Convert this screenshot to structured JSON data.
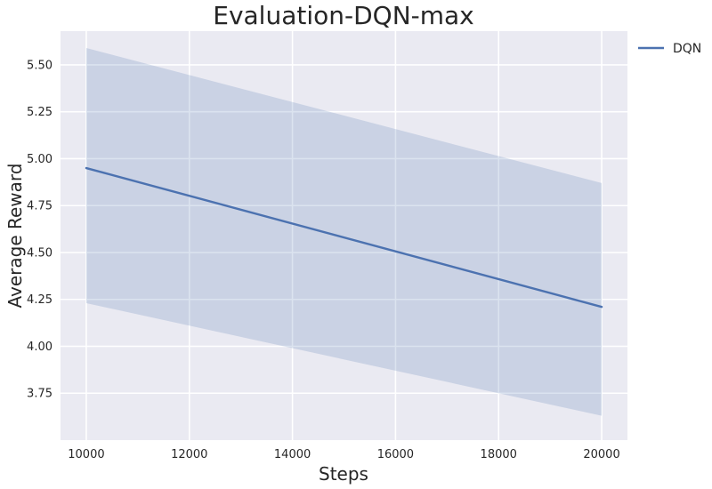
{
  "chart_data": {
    "type": "line",
    "title": "Evaluation-DQN-max",
    "xlabel": "Steps",
    "ylabel": "Average Reward",
    "xlim": [
      9500,
      20500
    ],
    "ylim": [
      3.5,
      5.68
    ],
    "xticks": [
      10000,
      12000,
      14000,
      16000,
      18000,
      20000
    ],
    "yticks": [
      3.75,
      4.0,
      4.25,
      4.5,
      4.75,
      5.0,
      5.25,
      5.5
    ],
    "ytick_labels": [
      "3.75",
      "4.00",
      "4.25",
      "4.50",
      "4.75",
      "5.00",
      "5.25",
      "5.50"
    ],
    "grid": true,
    "legend_position": "outside-top-right",
    "series": [
      {
        "name": "DQN",
        "color": "#4c72b0",
        "x": [
          10000,
          20000
        ],
        "y": [
          4.95,
          4.21
        ],
        "band_upper": [
          5.59,
          4.87
        ],
        "band_lower": [
          4.23,
          3.63
        ]
      }
    ]
  }
}
